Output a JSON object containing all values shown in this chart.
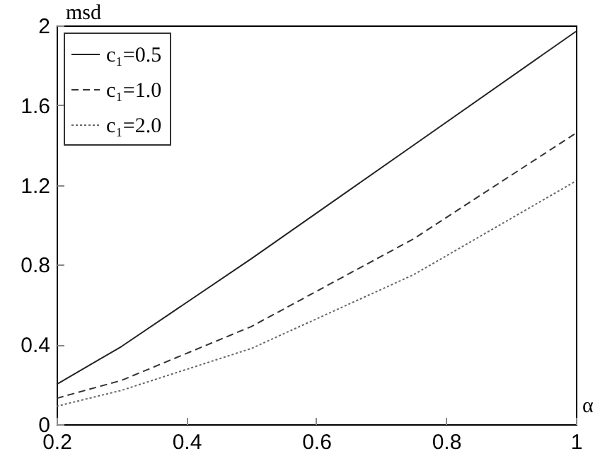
{
  "chart_data": {
    "type": "line",
    "xlabel": "α",
    "ylabel": "msd",
    "x": [
      0.2,
      0.3,
      0.5,
      0.75,
      1.0
    ],
    "xlim": [
      0.2,
      1
    ],
    "xticks": [
      0.2,
      0.4,
      0.6,
      0.8,
      1
    ],
    "ylim": [
      0,
      2
    ],
    "yticks": [
      0,
      0.4,
      0.8,
      1.2,
      1.6,
      2
    ],
    "legend": "top left",
    "grid": false,
    "marker": "none",
    "series": [
      {
        "name": "c₁=0.5",
        "color": "#222222",
        "line_style": "solid",
        "values": [
          0.2,
          0.39,
          0.83,
          1.4,
          1.97
        ]
      },
      {
        "name": "c₁=1.0",
        "color": "#333333",
        "line_style": "dashed",
        "values": [
          0.13,
          0.22,
          0.49,
          0.93,
          1.46
        ]
      },
      {
        "name": "c₁=2.0",
        "color": "#666666",
        "line_style": "dotted",
        "values": [
          0.09,
          0.17,
          0.38,
          0.75,
          1.22
        ]
      }
    ]
  }
}
